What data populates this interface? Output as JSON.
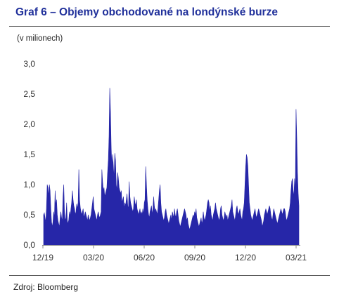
{
  "title": "Graf 6 – Objemy obchodované na londýnské burze",
  "unit_label": "(v milionech)",
  "source": "Zdroj: Bloomberg",
  "colors": {
    "title": "#1f2f9a",
    "series": "#2626a8",
    "axis": "#888888"
  },
  "chart_data": {
    "type": "area",
    "title": "Graf 6 – Objemy obchodované na londýnské burze",
    "xlabel": "",
    "ylabel": "(v milionech)",
    "ylim": [
      0,
      3.0
    ],
    "yticks": [
      "0,0",
      "0,5",
      "1,0",
      "1,5",
      "2,0",
      "2,5",
      "3,0"
    ],
    "yticks_values": [
      0,
      0.5,
      1.0,
      1.5,
      2.0,
      2.5,
      3.0
    ],
    "xticks": [
      "12/19",
      "03/20",
      "06/20",
      "09/20",
      "12/20",
      "03/21"
    ],
    "grid": false,
    "legend": "none",
    "series": [
      {
        "values": [
          0.5,
          0.53,
          0.45,
          0.38,
          0.6,
          1.0,
          0.95,
          0.8,
          1.0,
          0.9,
          0.6,
          0.38,
          0.3,
          0.38,
          0.55,
          0.45,
          0.9,
          0.65,
          0.75,
          0.5,
          0.4,
          0.35,
          0.3,
          0.45,
          0.55,
          0.45,
          0.4,
          0.8,
          1.0,
          0.55,
          0.4,
          0.45,
          0.7,
          0.4,
          0.35,
          0.42,
          0.55,
          0.48,
          0.6,
          0.7,
          0.9,
          0.75,
          0.65,
          0.6,
          0.5,
          0.55,
          0.68,
          0.6,
          0.7,
          1.25,
          0.75,
          0.62,
          0.55,
          0.5,
          0.55,
          0.6,
          0.45,
          0.5,
          0.55,
          0.5,
          0.45,
          0.4,
          0.5,
          0.45,
          0.4,
          0.45,
          0.5,
          0.6,
          0.7,
          0.8,
          0.6,
          0.55,
          0.5,
          0.45,
          0.4,
          0.5,
          0.55,
          0.48,
          0.45,
          0.5,
          0.55,
          1.25,
          1.05,
          0.9,
          0.95,
          0.8,
          0.85,
          0.9,
          0.95,
          1.2,
          1.4,
          1.8,
          2.6,
          2.2,
          1.6,
          1.3,
          1.5,
          1.3,
          1.1,
          1.52,
          1.4,
          1.0,
          0.9,
          1.2,
          1.1,
          0.95,
          0.9,
          0.85,
          0.9,
          0.7,
          0.75,
          0.8,
          0.6,
          0.7,
          0.65,
          0.75,
          0.85,
          0.65,
          0.6,
          1.05,
          0.8,
          0.7,
          0.65,
          0.6,
          0.55,
          0.6,
          0.8,
          0.7,
          0.65,
          0.75,
          0.6,
          0.55,
          0.5,
          0.55,
          0.6,
          0.5,
          0.55,
          0.5,
          0.6,
          0.5,
          0.7,
          0.75,
          1.3,
          1.0,
          0.75,
          0.6,
          0.5,
          0.45,
          0.55,
          0.6,
          0.65,
          0.5,
          0.6,
          0.8,
          0.65,
          0.55,
          0.6,
          0.55,
          0.5,
          0.6,
          0.75,
          0.9,
          1.0,
          0.7,
          0.55,
          0.5,
          0.45,
          0.4,
          0.45,
          0.55,
          0.6,
          0.5,
          0.45,
          0.4,
          0.35,
          0.4,
          0.45,
          0.5,
          0.4,
          0.55,
          0.5,
          0.45,
          0.6,
          0.5,
          0.45,
          0.55,
          0.6,
          0.5,
          0.4,
          0.35,
          0.3,
          0.35,
          0.4,
          0.45,
          0.5,
          0.55,
          0.6,
          0.55,
          0.5,
          0.4,
          0.45,
          0.35,
          0.3,
          0.25,
          0.3,
          0.35,
          0.4,
          0.45,
          0.5,
          0.45,
          0.55,
          0.5,
          0.6,
          0.45,
          0.4,
          0.35,
          0.3,
          0.35,
          0.4,
          0.45,
          0.35,
          0.4,
          0.55,
          0.45,
          0.4,
          0.45,
          0.5,
          0.6,
          0.7,
          0.75,
          0.7,
          0.55,
          0.65,
          0.5,
          0.45,
          0.4,
          0.5,
          0.55,
          0.6,
          0.7,
          0.6,
          0.55,
          0.5,
          0.45,
          0.4,
          0.45,
          0.6,
          0.65,
          0.5,
          0.45,
          0.4,
          0.45,
          0.55,
          0.5,
          0.45,
          0.5,
          0.4,
          0.45,
          0.5,
          0.55,
          0.6,
          0.65,
          0.75,
          0.55,
          0.5,
          0.45,
          0.4,
          0.5,
          0.6,
          0.65,
          0.55,
          0.5,
          0.55,
          0.6,
          0.5,
          0.45,
          0.4,
          0.55,
          0.6,
          0.7,
          1.0,
          1.3,
          1.5,
          1.45,
          1.3,
          1.0,
          0.7,
          0.6,
          0.5,
          0.45,
          0.4,
          0.45,
          0.5,
          0.55,
          0.6,
          0.5,
          0.45,
          0.5,
          0.55,
          0.6,
          0.55,
          0.5,
          0.45,
          0.4,
          0.3,
          0.35,
          0.4,
          0.5,
          0.55,
          0.6,
          0.55,
          0.5,
          0.55,
          0.6,
          0.65,
          0.6,
          0.5,
          0.45,
          0.4,
          0.5,
          0.6,
          0.55,
          0.5,
          0.45,
          0.4,
          0.35,
          0.4,
          0.45,
          0.5,
          0.55,
          0.6,
          0.55,
          0.5,
          0.55,
          0.6,
          0.6,
          0.55,
          0.45,
          0.4,
          0.45,
          0.5,
          0.55,
          0.6,
          0.7,
          0.9,
          1.05,
          1.1,
          0.9,
          0.8,
          1.1,
          0.9,
          2.25,
          1.8,
          1.2,
          0.85,
          0.65
        ]
      }
    ]
  }
}
